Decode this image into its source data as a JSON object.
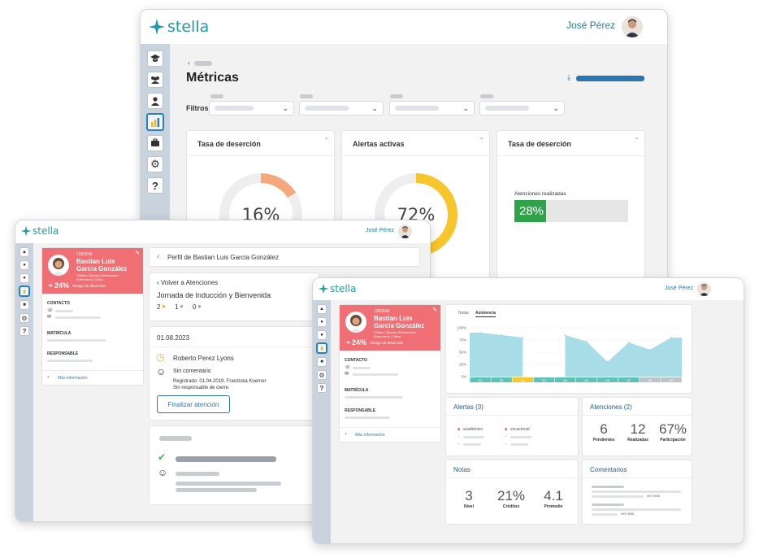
{
  "brand": {
    "name": "stella",
    "color": "#1f9aa8"
  },
  "user": {
    "name": "José Pérez"
  },
  "metrics": {
    "title": "Métricas",
    "filters_label": "Filtros:",
    "cards": [
      {
        "title": "Tasa de deserción",
        "value": "16%",
        "percent": 16,
        "color": "#f4a87c"
      },
      {
        "title": "Alertas activas",
        "value": "72%",
        "percent": 72,
        "color": "#f7c52c"
      },
      {
        "title": "Tasa de deserción",
        "sub": "Atenciones realizadas",
        "value": "28%",
        "percent": 28,
        "color": "#2fa34a"
      }
    ]
  },
  "student": {
    "id": "1992646",
    "first": "Bastian Luis",
    "last": "Garcia González",
    "meta1": "Chillan | Diurna | Enfermería |",
    "meta2": "Enfermería | Único",
    "risk": "24%",
    "risk_label": "Riesgo de deserción",
    "contact": "CONTACTO",
    "enrollment": "MATRÍCULA",
    "responsible": "RESPONSABLE",
    "more": "Más información"
  },
  "profile": {
    "breadcrumb": "Perfil de Bastian Luis Garcia González",
    "back": "Volver a Atenciones",
    "event": "Jornada de Inducción y Bienvenida",
    "counts": [
      "2",
      "1",
      "0"
    ],
    "date": "01.08.2023",
    "person": "Roberto Perez Lyons",
    "comment": "Sin comentario",
    "registered": "Registrado: 01.04.2019, Franziska Koerner",
    "no_responsible": "Sin responsable de cierre",
    "finalize": "Finalizar atención"
  },
  "dashboard": {
    "tabs": [
      "Notas",
      "Asistencia"
    ],
    "yticks": [
      "100%",
      "75%",
      "50%",
      "25%",
      "0%"
    ],
    "weeks": [
      "01",
      "02",
      "XX",
      "03",
      "04",
      "05",
      "06",
      "07",
      "08",
      "09"
    ],
    "alerts_title": "Alertas (3)",
    "alert_tags": [
      "académico",
      "vocacional"
    ],
    "atenciones_title": "Atenciones (2)",
    "atenciones": [
      {
        "value": "6",
        "label": "Pendientes"
      },
      {
        "value": "12",
        "label": "Realizadas"
      },
      {
        "value": "67%",
        "label": "Participación"
      }
    ],
    "notas_title": "Notas",
    "notas": [
      {
        "value": "3",
        "label": "Nivel"
      },
      {
        "value": "21%",
        "label": "Créditos"
      },
      {
        "value": "4.1",
        "label": "Promedio"
      }
    ],
    "comments_title": "Comentarios",
    "see_more": "ver más"
  },
  "chart_data": {
    "type": "area",
    "x": [
      "01",
      "02",
      "XX",
      "03",
      "04",
      "05",
      "06",
      "07",
      "08",
      "09"
    ],
    "y_label_ticks": [
      "0%",
      "25%",
      "50%",
      "75%",
      "100%"
    ],
    "ylim": [
      0,
      100
    ],
    "values": [
      90,
      85,
      80,
      null,
      85,
      72,
      30,
      70,
      55,
      80
    ],
    "color": "#a8dde8"
  }
}
